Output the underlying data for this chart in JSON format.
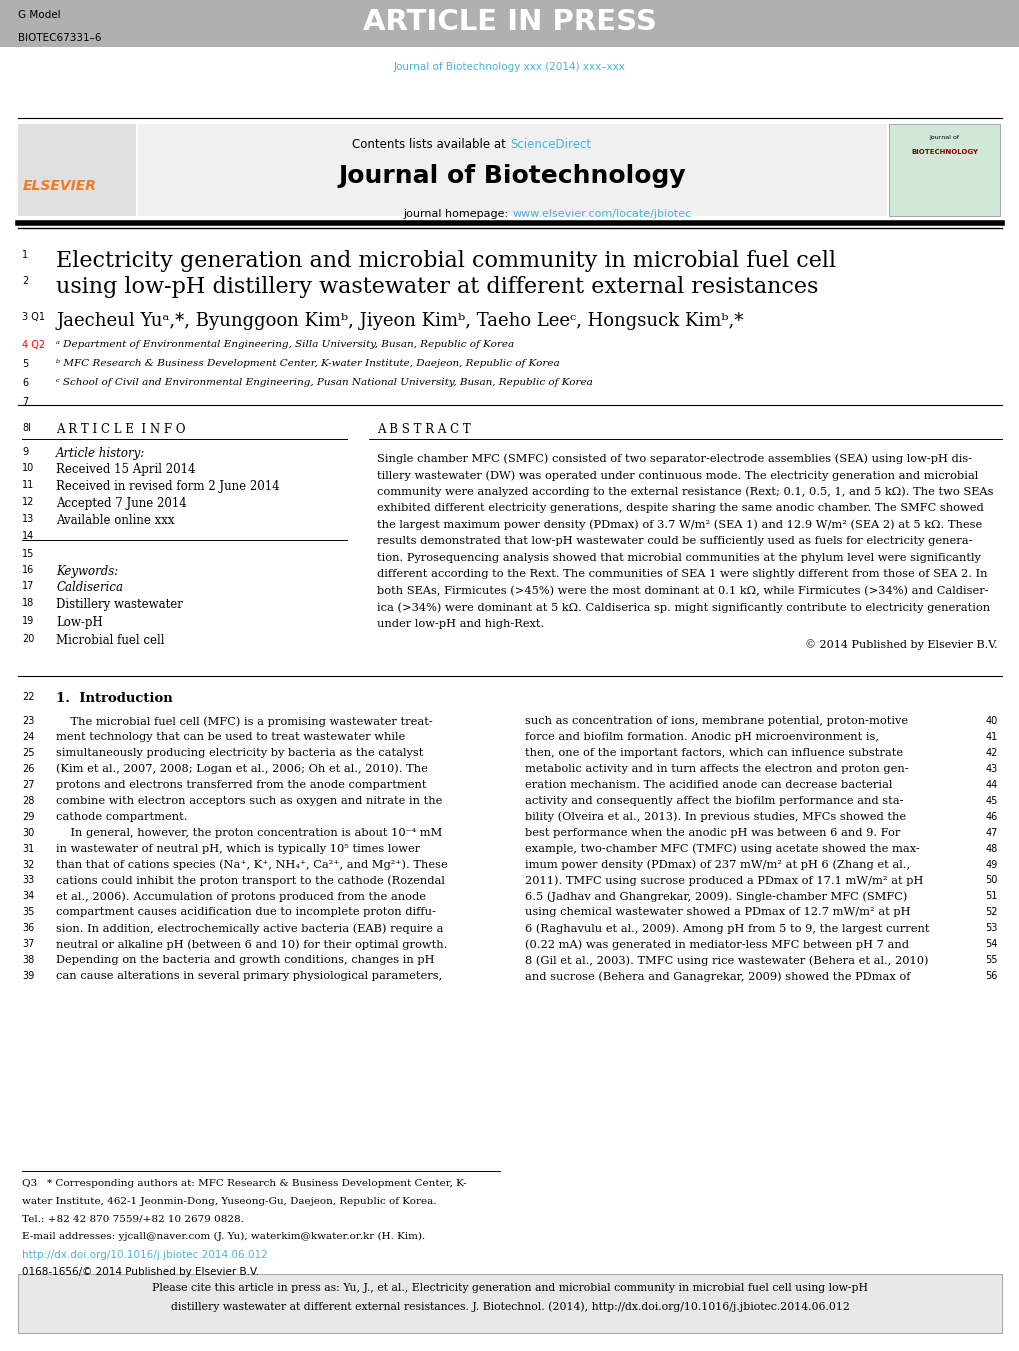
{
  "fig_width": 10.2,
  "fig_height": 13.51,
  "bg_color": "#ffffff",
  "header_bar_color": "#b0b0b0",
  "header_bar_height": 0.038,
  "header_text_gmodel": "G Model",
  "header_text_biotec": "BIOTEC67331–6",
  "header_article_in_press": "ARTICLE IN PRESS",
  "journal_cite_line": "Journal of Biotechnology xxx (2014) xxx–xxx",
  "journal_cite_color": "#4ab3d6",
  "journal_title": "Journal of Biotechnology",
  "journal_homepage_url": "www.elsevier.com/locate/jbiotec",
  "sciencedirect": "ScienceDirect",
  "elsevier_color": "#f47920",
  "link_color": "#4ab3d6",
  "article_title_line1": "Electricity generation and microbial community in microbial fuel cell",
  "article_title_line2": "using low-pH distillery wastewater at different external resistances",
  "authors_full": "Jaecheul Yuᵃ,*, Byunggoon Kimᵇ, Jiyeon Kimᵇ, Taeho Leeᶜ, Hongsuck Kimᵇ,*",
  "affiliations": [
    "ᵃ Department of Environmental Engineering, Silla University, Busan, Republic of Korea",
    "ᵇ MFC Research & Business Development Center, K-water Institute, Daejeon, Republic of Korea",
    "ᶜ School of Civil and Environmental Engineering, Pusan National University, Busan, Republic of Korea"
  ],
  "article_info_title": "A R T I C L E  I N F O",
  "abstract_title": "A B S T R A C T",
  "article_history_label": "Article history:",
  "received": "Received 15 April 2014",
  "received_revised": "Received in revised form 2 June 2014",
  "accepted": "Accepted 7 June 2014",
  "available": "Available online xxx",
  "keywords_label": "Keywords:",
  "keywords": [
    "Caldiserica",
    "Distillery wastewater",
    "Low-pH",
    "Microbial fuel cell"
  ],
  "abstract_lines": [
    "Single chamber MFC (SMFC) consisted of two separator-electrode assemblies (SEA) using low-pH dis-",
    "tillery wastewater (DW) was operated under continuous mode. The electricity generation and microbial",
    "community were analyzed according to the external resistance (Rext; 0.1, 0.5, 1, and 5 kΩ). The two SEAs",
    "exhibited different electricity generations, despite sharing the same anodic chamber. The SMFC showed",
    "the largest maximum power density (PDmax) of 3.7 W/m² (SEA 1) and 12.9 W/m² (SEA 2) at 5 kΩ. These",
    "results demonstrated that low-pH wastewater could be sufficiently used as fuels for electricity genera-",
    "tion. Pyrosequencing analysis showed that microbial communities at the phylum level were significantly",
    "different according to the Rext. The communities of SEA 1 were slightly different from those of SEA 2. In",
    "both SEAs, Firmicutes (>45%) were the most dominant at 0.1 kΩ, while Firmicutes (>34%) and Caldiser-",
    "ica (>34%) were dominant at 5 kΩ. Caldiserica sp. might significantly contribute to electricity generation",
    "under low-pH and high-Rext."
  ],
  "copyright": "© 2014 Published by Elsevier B.V.",
  "intro_heading": "1.  Introduction",
  "intro_left": [
    "    The microbial fuel cell (MFC) is a promising wastewater treat-",
    "ment technology that can be used to treat wastewater while",
    "simultaneously producing electricity by bacteria as the catalyst",
    "(Kim et al., 2007, 2008; Logan et al., 2006; Oh et al., 2010). The",
    "protons and electrons transferred from the anode compartment",
    "combine with electron acceptors such as oxygen and nitrate in the",
    "cathode compartment.",
    "    In general, however, the proton concentration is about 10⁻⁴ mM",
    "in wastewater of neutral pH, which is typically 10⁵ times lower",
    "than that of cations species (Na⁺, K⁺, NH₄⁺, Ca²⁺, and Mg²⁺). These",
    "cations could inhibit the proton transport to the cathode (Rozendal",
    "et al., 2006). Accumulation of protons produced from the anode",
    "compartment causes acidification due to incomplete proton diffu-",
    "sion. In addition, electrochemically active bacteria (EAB) require a",
    "neutral or alkaline pH (between 6 and 10) for their optimal growth.",
    "Depending on the bacteria and growth conditions, changes in pH",
    "can cause alterations in several primary physiological parameters,"
  ],
  "intro_left_linenos": [
    23,
    24,
    25,
    26,
    27,
    28,
    29,
    30,
    31,
    32,
    33,
    34,
    35,
    36,
    37,
    38,
    39
  ],
  "intro_right": [
    "such as concentration of ions, membrane potential, proton-motive",
    "force and biofilm formation. Anodic pH microenvironment is,",
    "then, one of the important factors, which can influence substrate",
    "metabolic activity and in turn affects the electron and proton gen-",
    "eration mechanism. The acidified anode can decrease bacterial",
    "activity and consequently affect the biofilm performance and sta-",
    "bility (Olveira et al., 2013). In previous studies, MFCs showed the",
    "best performance when the anodic pH was between 6 and 9. For",
    "example, two-chamber MFC (TMFC) using acetate showed the max-",
    "imum power density (PDmax) of 237 mW/m² at pH 6 (Zhang et al.,",
    "2011). TMFC using sucrose produced a PDmax of 17.1 mW/m² at pH",
    "6.5 (Jadhav and Ghangrekar, 2009). Single-chamber MFC (SMFC)",
    "using chemical wastewater showed a PDmax of 12.7 mW/m² at pH",
    "6 (Raghavulu et al., 2009). Among pH from 5 to 9, the largest current",
    "(0.22 mA) was generated in mediator-less MFC between pH 7 and",
    "8 (Gil et al., 2003). TMFC using rice wastewater (Behera et al., 2010)",
    "and sucrose (Behera and Ganagrekar, 2009) showed the PDmax of"
  ],
  "intro_right_linenos": [
    40,
    41,
    42,
    43,
    44,
    45,
    46,
    47,
    48,
    49,
    50,
    51,
    52,
    53,
    54,
    55,
    56
  ],
  "corr_lines": [
    "Q3   * Corresponding authors at: MFC Research & Business Development Center, K-",
    "water Institute, 462-1 Jeonmin-Dong, Yuseong-Gu, Daejeon, Republic of Korea.",
    "Tel.: +82 42 870 7559/+82 10 2679 0828.",
    "E-mail addresses: yjcall@naver.com (J. Yu), waterkim@kwater.or.kr (H. Kim)."
  ],
  "doi_line1": "http://dx.doi.org/10.1016/j.jbiotec.2014.06.012",
  "doi_line2": "0168-1656/© 2014 Published by Elsevier B.V.",
  "footer_line1": "Please cite this article in press as: Yu, J., et al., Electricity generation and microbial community in microbial fuel cell using low-pH",
  "footer_line2": "distillery wastewater at different external resistances. J. Biotechnol. (2014), http://dx.doi.org/10.1016/j.jbiotec.2014.06.012"
}
